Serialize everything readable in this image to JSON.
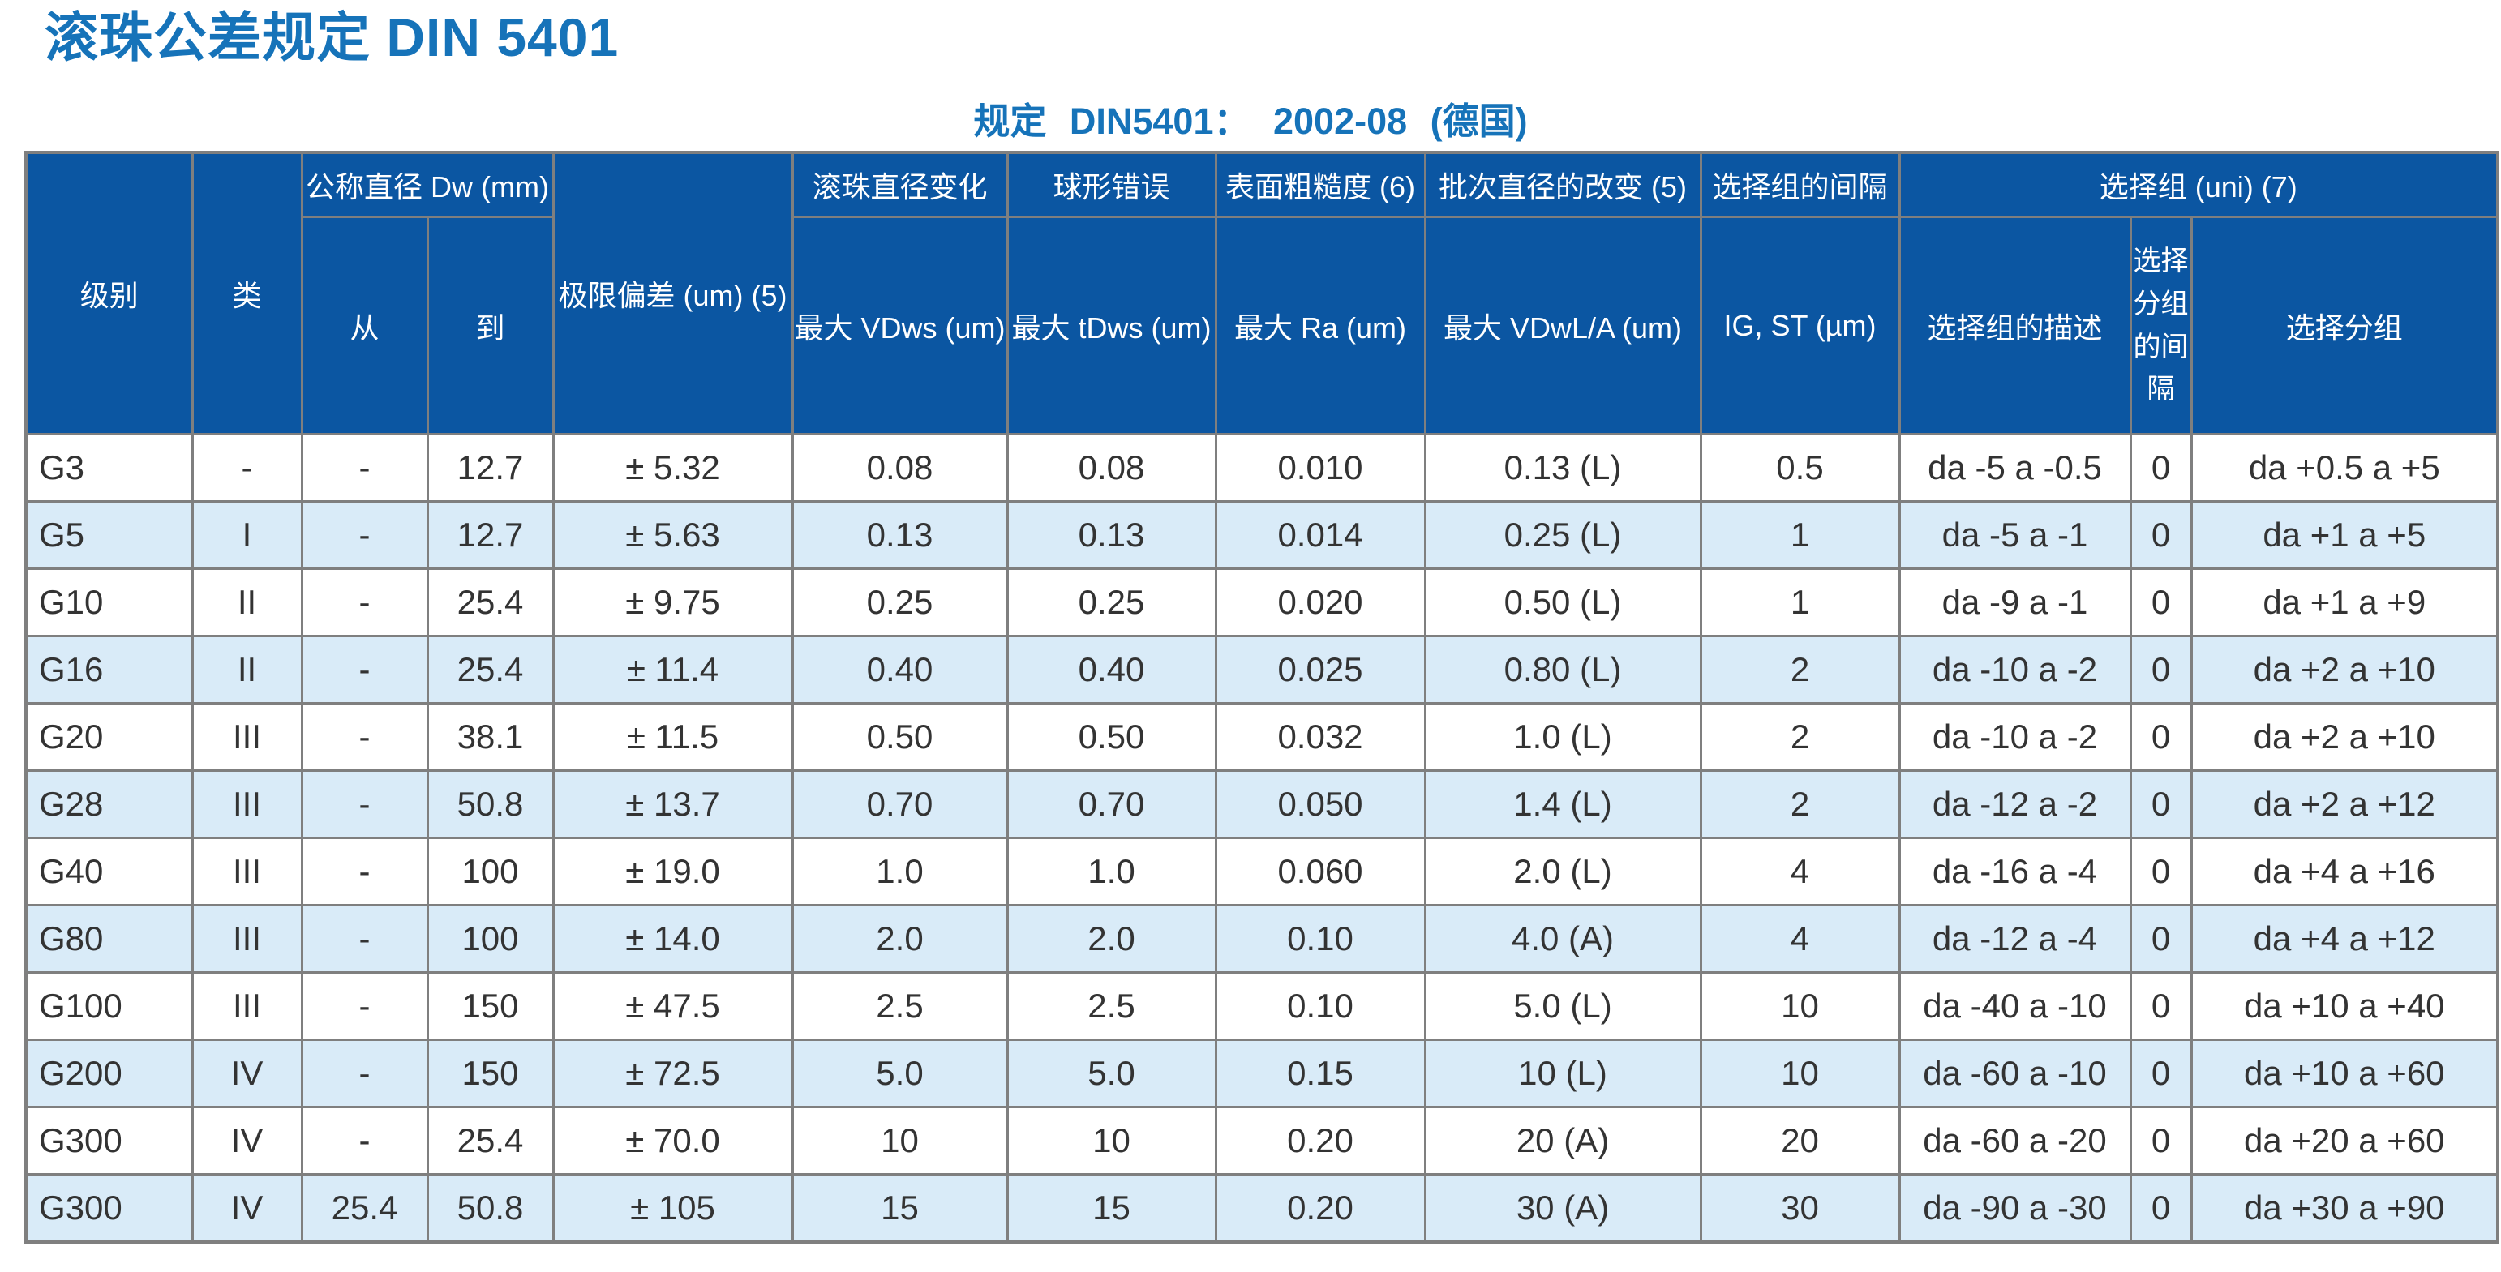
{
  "page": {
    "title": "滚珠公差规定 DIN 5401",
    "subtitle": "规定 DIN5401： 2002-08 (德国)"
  },
  "colors": {
    "title_blue": "#1673b9",
    "header_bg": "#0b56a2",
    "row_alt_bg": "#d9ebf8",
    "grid_gray": "#7f7f7f",
    "text_dark": "#333333"
  },
  "table": {
    "headers": {
      "level": "级别",
      "class": "类",
      "nominal_diameter": "公称直径 Dw (mm)",
      "from": "从",
      "to": "到",
      "limit_deviation": "极限偏差 (um) (5)",
      "ball_diameter_variation": "滚珠直径变化",
      "max_vdws": "最大  VDws (um)",
      "spherical_error": "球形错误",
      "max_tdws": "最大  tDws (um)",
      "surface_roughness": "表面粗糙度  (6)",
      "max_ra": "最大  Ra (um)",
      "batch_diameter_change": "批次直径的改变  (5)",
      "max_vdwl_a": "最大  VDwL/A (um)",
      "selection_group_interval": "选择组的间隔",
      "ig_st": "IG, ST (µm)",
      "selection_group": "选择组  (uni) (7)",
      "selection_group_desc": "选择组的描述",
      "selection_subgroup_interval": "选择分组的间隔",
      "selection_subgroup": "选择分组"
    },
    "rows": [
      [
        "G3",
        "-",
        "-",
        "12.7",
        "± 5.32",
        "0.08",
        "0.08",
        "0.010",
        "0.13 (L)",
        "0.5",
        "da -5 a -0.5",
        "0",
        "da +0.5 a +5"
      ],
      [
        "G5",
        "I",
        "-",
        "12.7",
        "± 5.63",
        "0.13",
        "0.13",
        "0.014",
        "0.25 (L)",
        "1",
        "da -5 a -1",
        "0",
        "da +1 a +5"
      ],
      [
        "G10",
        "II",
        "-",
        "25.4",
        "± 9.75",
        "0.25",
        "0.25",
        "0.020",
        "0.50 (L)",
        "1",
        "da -9 a -1",
        "0",
        "da +1 a +9"
      ],
      [
        "G16",
        "II",
        "-",
        "25.4",
        "± 11.4",
        "0.40",
        "0.40",
        "0.025",
        "0.80 (L)",
        "2",
        "da -10 a -2",
        "0",
        "da +2 a +10"
      ],
      [
        "G20",
        "III",
        "-",
        "38.1",
        "± 11.5",
        "0.50",
        "0.50",
        "0.032",
        "1.0 (L)",
        "2",
        "da -10 a -2",
        "0",
        "da +2 a +10"
      ],
      [
        "G28",
        "III",
        "-",
        "50.8",
        "± 13.7",
        "0.70",
        "0.70",
        "0.050",
        "1.4 (L)",
        "2",
        "da -12 a -2",
        "0",
        "da +2 a +12"
      ],
      [
        "G40",
        "III",
        "-",
        "100",
        "± 19.0",
        "1.0",
        "1.0",
        "0.060",
        "2.0 (L)",
        "4",
        "da -16 a -4",
        "0",
        "da +4 a +16"
      ],
      [
        "G80",
        "III",
        "-",
        "100",
        "± 14.0",
        "2.0",
        "2.0",
        "0.10",
        "4.0 (A)",
        "4",
        "da -12 a -4",
        "0",
        "da +4 a +12"
      ],
      [
        "G100",
        "III",
        "-",
        "150",
        "± 47.5",
        "2.5",
        "2.5",
        "0.10",
        "5.0 (L)",
        "10",
        "da -40 a -10",
        "0",
        "da +10 a +40"
      ],
      [
        "G200",
        "IV",
        "-",
        "150",
        "± 72.5",
        "5.0",
        "5.0",
        "0.15",
        "10 (L)",
        "10",
        "da -60 a -10",
        "0",
        "da +10 a +60"
      ],
      [
        "G300",
        "IV",
        "-",
        "25.4",
        "± 70.0",
        "10",
        "10",
        "0.20",
        "20 (A)",
        "20",
        "da -60 a -20",
        "0",
        "da +20 a +60"
      ],
      [
        "G300",
        "IV",
        "25.4",
        "50.8",
        "± 105",
        "15",
        "15",
        "0.20",
        "30 (A)",
        "30",
        "da -90 a -30",
        "0",
        "da +30 a +90"
      ]
    ]
  }
}
